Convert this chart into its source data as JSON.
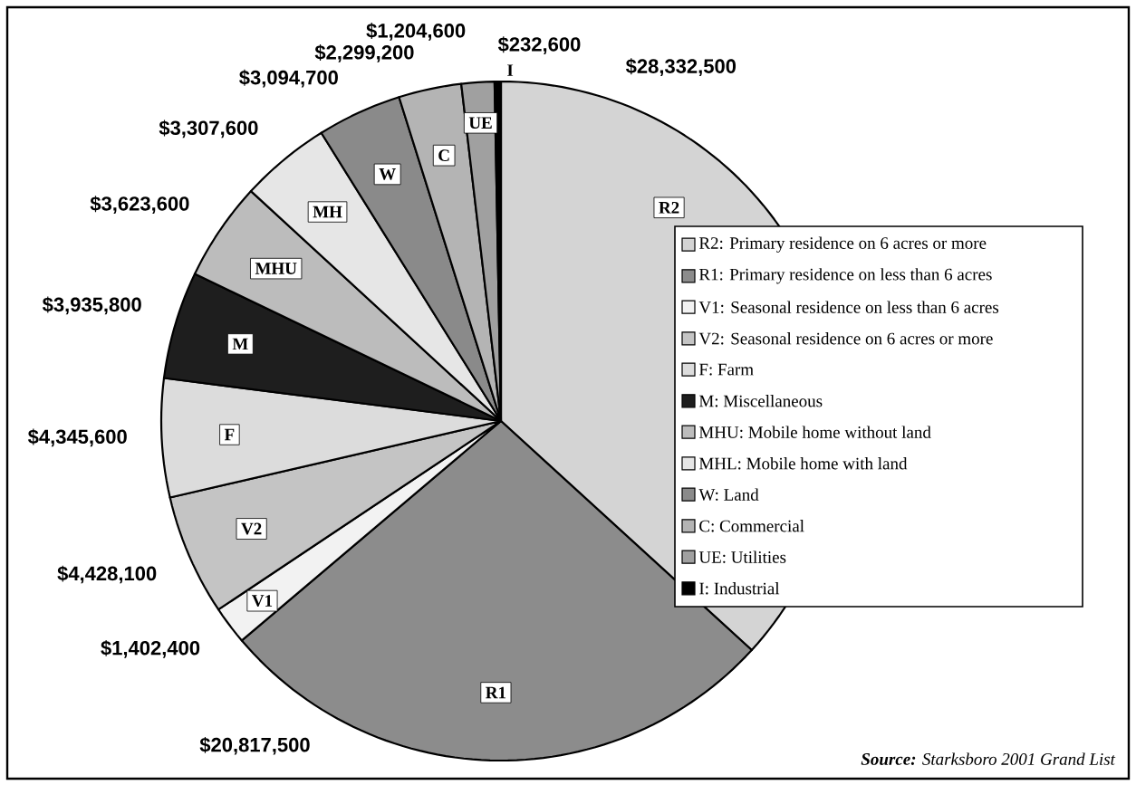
{
  "chart_data": {
    "type": "pie",
    "categories": [
      "R2: Primary residence on 6 acres or more",
      "R1: Primary residence on less than 6 acres",
      "V1: Seasonal residence on less than 6 acres",
      "V2: Seasonal residence on 6 acres or more",
      "F: Farm",
      "M: Miscellaneous",
      "MHU: Mobile home without land",
      "MHL: Mobile home with land",
      "W: Land",
      "C: Commercial",
      "UE: Utilities",
      "I: Industrial"
    ],
    "values": [
      28332500,
      20817500,
      1402400,
      4428100,
      4345600,
      3935800,
      3623600,
      3307600,
      3094700,
      2299200,
      1204600,
      232600
    ],
    "value_labels": [
      "$28,332,500",
      "$20,817,500",
      "$1,402,400",
      "$4,428,100",
      "$4,345,600",
      "$3,935,800",
      "$3,623,600",
      "$3,307,600",
      "$3,094,700",
      "$2,299,200",
      "$1,204,600",
      "$232,600"
    ],
    "colors": [
      "#d4d4d4",
      "#8c8c8c",
      "#f2f2f2",
      "#c4c4c4",
      "#dcdcdc",
      "#1e1e1e",
      "#bcbcbc",
      "#e6e6e6",
      "#8a8a8a",
      "#b4b4b4",
      "#a0a0a0",
      "#000000"
    ],
    "legend": "right",
    "annotations": [
      {
        "text": "R2",
        "x": "R2: Primary residence on 6 acres or more"
      },
      {
        "text": "R1",
        "x": "R1: Primary residence on less than 6 acres"
      },
      {
        "text": "V1",
        "x": "V1: Seasonal residence on less than 6 acres"
      },
      {
        "text": "V2",
        "x": "V2: Seasonal residence on 6 acres or more"
      },
      {
        "text": "F",
        "x": "F: Farm"
      },
      {
        "text": "M",
        "x": "M: Miscellaneous"
      },
      {
        "text": "MHU",
        "x": "MHU: Mobile home without land"
      },
      {
        "text": "MH",
        "x": "MHL: Mobile home with land"
      },
      {
        "text": "W",
        "x": "W: Land"
      },
      {
        "text": "C",
        "x": "C: Commercial"
      },
      {
        "text": "UE",
        "x": "UE: Utilities"
      },
      {
        "text": "I",
        "x": "I: Industrial"
      },
      "**Source:**  *Starksboro 2001 Grand List*"
    ]
  }
}
